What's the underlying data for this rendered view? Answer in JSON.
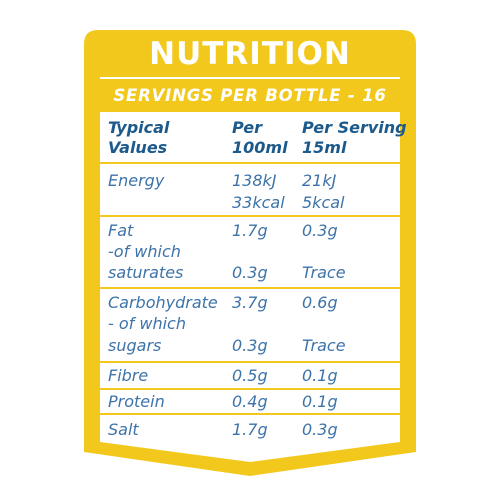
{
  "label": {
    "title": "NUTRITION",
    "subtitle": "SERVINGS PER BOTTLE - 16",
    "colors": {
      "panel": "#f3c81c",
      "header_text": "#1c5a8c",
      "body_text": "#3d73a8",
      "background": "#ffffff"
    }
  },
  "table": {
    "headers": {
      "typical_line1": "Typical",
      "typical_line2": "Values",
      "per100_line1": "Per",
      "per100_line2": "100ml",
      "perserving_line1": "Per Serving",
      "perserving_line2": "15ml"
    },
    "rows": {
      "energy": {
        "label": "Energy",
        "per100_kj": "138kJ",
        "per100_kcal": "33kcal",
        "serving_kj": "21kJ",
        "serving_kcal": "5kcal"
      },
      "fat": {
        "label": "Fat",
        "per100": "1.7g",
        "serving": "0.3g",
        "sub_line1": "-of which",
        "sub_line2": "saturates",
        "sub_per100": "0.3g",
        "sub_serving": "Trace"
      },
      "carbohydrate": {
        "label": "Carbohydrate",
        "per100": "3.7g",
        "serving": "0.6g",
        "sub_line1": "- of which",
        "sub_line2": "sugars",
        "sub_per100": "0.3g",
        "sub_serving": "Trace"
      },
      "fibre": {
        "label": "Fibre",
        "per100": "0.5g",
        "serving": "0.1g"
      },
      "protein": {
        "label": "Protein",
        "per100": "0.4g",
        "serving": "0.1g"
      },
      "salt": {
        "label": "Salt",
        "per100": "1.7g",
        "serving": "0.3g"
      }
    }
  }
}
